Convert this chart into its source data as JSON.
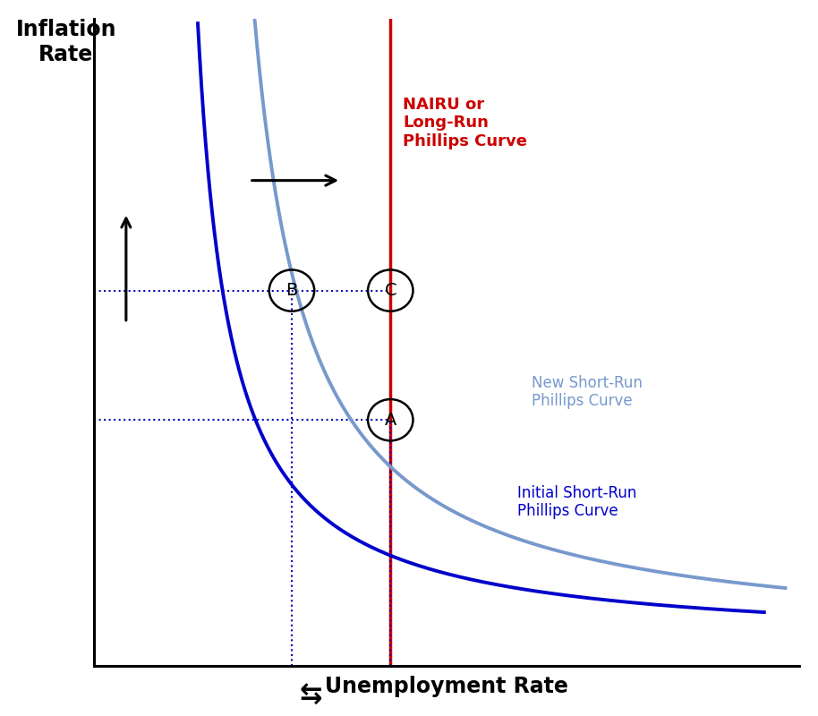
{
  "background_color": "#ffffff",
  "xlim": [
    0,
    10
  ],
  "ylim": [
    0,
    10
  ],
  "nairu_x": 4.2,
  "initial_curve_color": "#0000cc",
  "new_curve_color": "#7799cc",
  "nairu_color": "#cc0000",
  "dotted_color": "#0000bb",
  "point_A": [
    4.2,
    3.8
  ],
  "point_B": [
    2.8,
    5.8
  ],
  "point_C": [
    4.2,
    5.8
  ],
  "label_A": "A",
  "label_B": "B",
  "label_C": "C",
  "nairu_label": "NAIRU or\nLong-Run\nPhillips Curve",
  "new_curve_label": "New Short-Run\nPhillips Curve",
  "initial_curve_label": "Initial Short-Run\nPhillips Curve",
  "arrow_color": "#000000",
  "xlabel": "Unemployment Rate",
  "ylabel": "Inflation\nRate"
}
